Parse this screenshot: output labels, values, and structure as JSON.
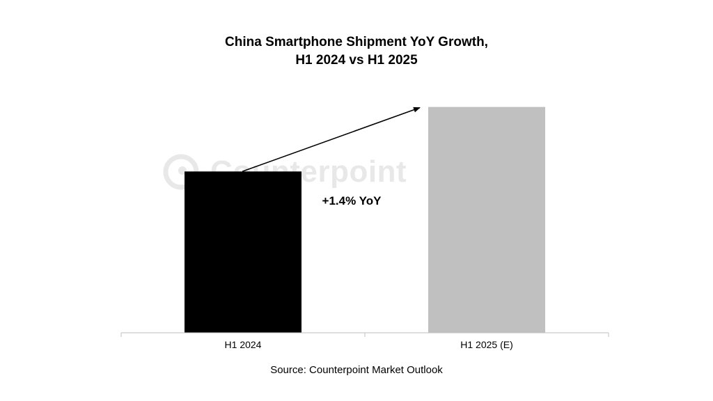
{
  "watermark": "Counterpoint",
  "source": "Source: Counterpoint Market Outlook",
  "chart_data": {
    "type": "bar",
    "title_lines": [
      "China Smartphone Shipment YoY Growth,",
      "H1 2024 vs H1 2025"
    ],
    "categories": [
      "H1 2024",
      "H1 2025 (E)"
    ],
    "values": [
      1.0,
      1.014
    ],
    "colors": [
      "#000000",
      "#c0c0c0"
    ],
    "ylim": [
      0.965,
      1.015
    ],
    "y_axis_shown": false,
    "grid": false,
    "legend": "none",
    "annotation": "+1.4% YoY",
    "xlabel": "",
    "ylabel": ""
  }
}
